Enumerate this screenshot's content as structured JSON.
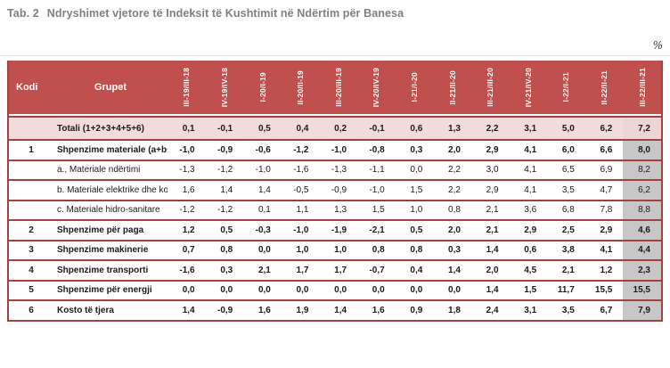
{
  "title": {
    "prefix": "Tab. 2",
    "text": "Ndryshimet vjetore të Indeksit të Kushtimit në Ndërtim për Banesa"
  },
  "unit_label": "%",
  "colors": {
    "header_red": "#c0504d",
    "border_red": "#a3413f",
    "total_row_pink": "#f2dcdb",
    "last_column_gray": "#c7c7c7",
    "title_gray": "#808080"
  },
  "table": {
    "kodi_header": "Kodi",
    "grupet_header": "Grupet",
    "period_headers": [
      "III-19/III-18",
      "IV-19/IV-18",
      "I-20/I-19",
      "II-20/II-19",
      "III-20/III-19",
      "IV-20/IV-19",
      "I-21/I-20",
      "II-21/II-20",
      "III-21/III-20",
      "IV-21/IV-20",
      "I-22/I-21",
      "II-22/II-21",
      "III-22/III-21"
    ],
    "rows": [
      {
        "kodi": "",
        "grupet": "Totali (1+2+3+4+5+6)",
        "bold": true,
        "total": true,
        "values": [
          "0,1",
          "-0,1",
          "0,5",
          "0,4",
          "0,2",
          "-0,1",
          "0,6",
          "1,3",
          "2,2",
          "3,1",
          "5,0",
          "6,2",
          "7,2"
        ]
      },
      {
        "kodi": "1",
        "grupet": "Shpenzime materiale (a+b+c)",
        "bold": true,
        "total": false,
        "values": [
          "-1,0",
          "-0,9",
          "-0,6",
          "-1,2",
          "-1,0",
          "-0,8",
          "0,3",
          "2,0",
          "2,9",
          "4,1",
          "6,0",
          "6,6",
          "8,0"
        ]
      },
      {
        "kodi": "",
        "grupet": "a., Materiale ndërtimi",
        "bold": false,
        "total": false,
        "values": [
          "-1,3",
          "-1,2",
          "-1,0",
          "-1,6",
          "-1,3",
          "-1,1",
          "0,0",
          "2,2",
          "3,0",
          "4,1",
          "6,5",
          "6,9",
          "8,2"
        ]
      },
      {
        "kodi": "",
        "grupet": "b. Materiale elektrike dhe komunikimi",
        "bold": false,
        "total": false,
        "values": [
          "1,6",
          "1,4",
          "1,4",
          "-0,5",
          "-0,9",
          "-1,0",
          "1,5",
          "2,2",
          "2,9",
          "4,1",
          "3,5",
          "4,7",
          "6,2"
        ]
      },
      {
        "kodi": "",
        "grupet": "c. Materiale hidro-sanitare",
        "bold": false,
        "total": false,
        "values": [
          "-1,2",
          "-1,2",
          "0,1",
          "1,1",
          "1,3",
          "1,5",
          "1,0",
          "0,8",
          "2,1",
          "3,6",
          "6,8",
          "7,8",
          "8,8"
        ]
      },
      {
        "kodi": "2",
        "grupet": "Shpenzime për paga",
        "bold": true,
        "total": false,
        "values": [
          "1,2",
          "0,5",
          "-0,3",
          "-1,0",
          "-1,9",
          "-2,1",
          "0,5",
          "2,0",
          "2,1",
          "2,9",
          "2,5",
          "2,9",
          "4,6"
        ]
      },
      {
        "kodi": "3",
        "grupet": "Shpenzime makinerie",
        "bold": true,
        "total": false,
        "values": [
          "0,7",
          "0,8",
          "0,0",
          "1,0",
          "1,0",
          "0,8",
          "0,8",
          "0,3",
          "1,4",
          "0,6",
          "3,8",
          "4,1",
          "4,4"
        ]
      },
      {
        "kodi": "4",
        "grupet": "Shpenzime transporti",
        "bold": true,
        "total": false,
        "values": [
          "-1,6",
          "0,3",
          "2,1",
          "1,7",
          "1,7",
          "-0,7",
          "0,4",
          "1,4",
          "2,0",
          "4,5",
          "2,1",
          "1,2",
          "2,3"
        ]
      },
      {
        "kodi": "5",
        "grupet": "Shpenzime për energji",
        "bold": true,
        "total": false,
        "values": [
          "0,0",
          "0,0",
          "0,0",
          "0,0",
          "0,0",
          "0,0",
          "0,0",
          "0,0",
          "1,4",
          "1,5",
          "11,7",
          "15,5",
          "15,5"
        ]
      },
      {
        "kodi": "6",
        "grupet": "Kosto të tjera",
        "bold": true,
        "total": false,
        "values": [
          "1,4",
          "-0,9",
          "1,6",
          "1,9",
          "1,4",
          "1,6",
          "0,9",
          "1,8",
          "2,4",
          "3,1",
          "3,5",
          "6,7",
          "7,9"
        ]
      }
    ]
  }
}
